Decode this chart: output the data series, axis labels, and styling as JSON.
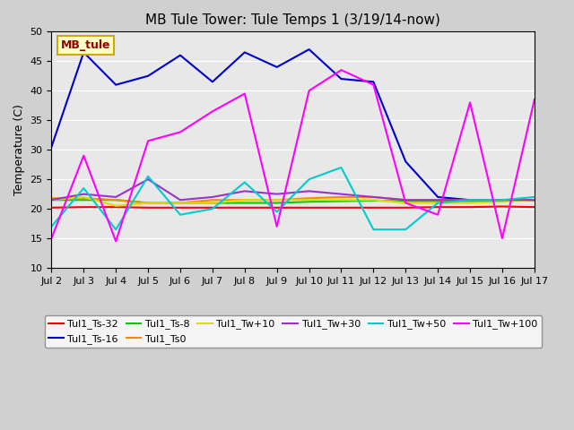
{
  "title": "MB Tule Tower: Tule Temps 1 (3/19/14-now)",
  "ylabel": "Temperature (C)",
  "xlabel": "",
  "xlim": [
    0,
    15
  ],
  "ylim": [
    10,
    50
  ],
  "yticks": [
    10,
    15,
    20,
    25,
    30,
    35,
    40,
    45,
    50
  ],
  "xtick_labels": [
    "Jul 2",
    "Jul 3",
    "Jul 4",
    "Jul 5",
    "Jul 6",
    "Jul 7",
    "Jul 8",
    "Jul 9",
    "Jul 10",
    "Jul 11",
    "Jul 12",
    "Jul 13",
    "Jul 14",
    "Jul 15",
    "Jul 16",
    "Jul 17"
  ],
  "xtick_positions": [
    0,
    1,
    2,
    3,
    4,
    5,
    6,
    7,
    8,
    9,
    10,
    11,
    12,
    13,
    14,
    15
  ],
  "background_color": "#e8e8e8",
  "plot_bg_color": "#e8e8e8",
  "legend_box_color": "#ffffcc",
  "legend_box_border": "#ccaa00",
  "series": {
    "Tul1_Ts-32": {
      "color": "#ff0000",
      "lw": 1.5,
      "values": [
        20.2,
        20.3,
        20.3,
        20.2,
        20.2,
        20.2,
        20.2,
        20.2,
        20.2,
        20.2,
        20.2,
        20.2,
        20.3,
        20.3,
        20.4,
        20.3
      ]
    },
    "Tul1_Ts-16": {
      "color": "#0000cc",
      "lw": 1.5,
      "values": [
        30.5,
        46.5,
        41.0,
        42.5,
        46.0,
        41.5,
        46.5,
        44.0,
        47.0,
        42.0,
        41.5,
        28.0,
        22.0,
        21.5,
        21.5,
        21.5
      ]
    },
    "Tul1_Ts-8": {
      "color": "#00cc00",
      "lw": 1.5,
      "values": [
        21.5,
        21.5,
        21.5,
        21.0,
        21.0,
        21.0,
        21.0,
        21.0,
        21.2,
        21.3,
        21.4,
        21.3,
        21.3,
        21.3,
        21.4,
        21.5
      ]
    },
    "Tul1_Ts0": {
      "color": "#ff8800",
      "lw": 1.5,
      "values": [
        21.8,
        21.8,
        21.5,
        21.0,
        21.0,
        21.5,
        21.5,
        21.5,
        21.8,
        22.0,
        22.0,
        21.5,
        21.5,
        21.5,
        21.5,
        21.5
      ]
    },
    "Tul1_Tw+10": {
      "color": "#dddd00",
      "lw": 1.5,
      "values": [
        21.5,
        22.0,
        20.5,
        21.0,
        21.0,
        21.0,
        21.5,
        21.5,
        21.5,
        21.5,
        21.5,
        21.0,
        21.0,
        21.0,
        21.2,
        21.5
      ]
    },
    "Tul1_Tw+30": {
      "color": "#9933cc",
      "lw": 1.5,
      "values": [
        21.5,
        22.5,
        22.0,
        25.0,
        21.5,
        22.0,
        23.0,
        22.5,
        23.0,
        22.5,
        22.0,
        21.5,
        21.5,
        21.5,
        21.5,
        21.5
      ]
    },
    "Tul1_Tw+50": {
      "color": "#00cccc",
      "lw": 1.5,
      "values": [
        17.0,
        23.5,
        16.5,
        25.5,
        19.0,
        20.0,
        24.5,
        19.5,
        25.0,
        27.0,
        16.5,
        16.5,
        21.0,
        21.5,
        21.5,
        22.0
      ]
    },
    "Tul1_Tw+100": {
      "color": "#ff00ff",
      "lw": 1.5,
      "values": [
        15.0,
        29.0,
        14.5,
        31.5,
        33.0,
        36.5,
        39.5,
        17.0,
        40.0,
        43.5,
        41.0,
        21.0,
        19.0,
        38.0,
        15.0,
        38.5
      ]
    }
  },
  "station_label": "MB_tule",
  "station_label_color": "#990000",
  "station_box_facecolor": "#ffffcc",
  "station_box_edgecolor": "#ccaa00"
}
